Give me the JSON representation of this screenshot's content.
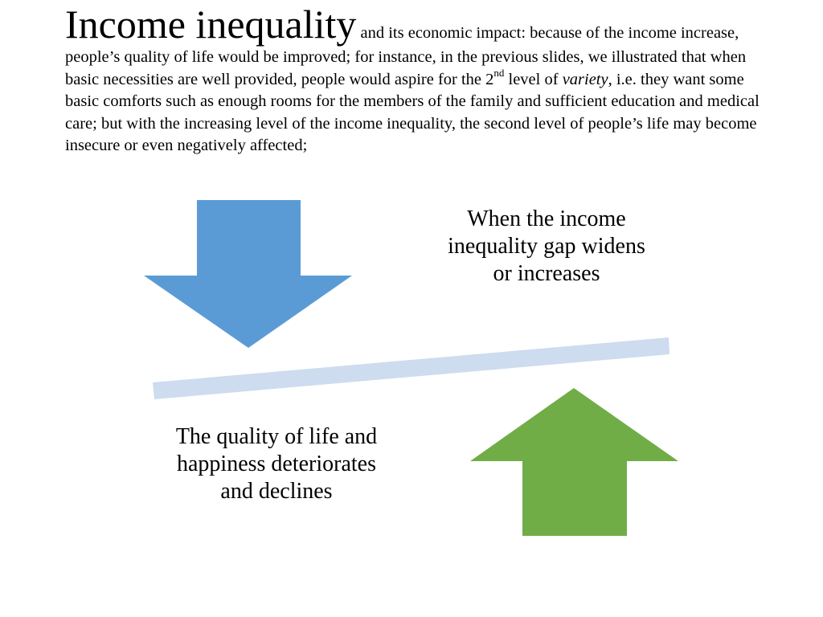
{
  "slide": {
    "title": "Income inequality",
    "intro": {
      "part1": " and its economic impact: because of the income increase, people’s quality of life would be improved; for instance, in the previous slides, we illustrated that when basic necessities are well provided, people would aspire for the 2",
      "superscript": "nd",
      "part2": " level of ",
      "emphasis": "variety",
      "part3": ", i.e. they want some basic comforts such as enough rooms for the members of the family and sufficient education and medical care; but with the increasing level of the income inequality, the second level of people’s life may become insecure or even negatively affected;"
    }
  },
  "diagram": {
    "cause_label": "When the income inequality gap widens or increases",
    "effect_label": "The quality of life and happiness deteriorates and declines",
    "colors": {
      "down_arrow": "#5b9bd5",
      "up_arrow": "#70ad47",
      "seesaw_bar": "#cddcee"
    },
    "icons": {
      "down_arrow": "arrow-down-icon",
      "up_arrow": "arrow-up-icon"
    }
  }
}
